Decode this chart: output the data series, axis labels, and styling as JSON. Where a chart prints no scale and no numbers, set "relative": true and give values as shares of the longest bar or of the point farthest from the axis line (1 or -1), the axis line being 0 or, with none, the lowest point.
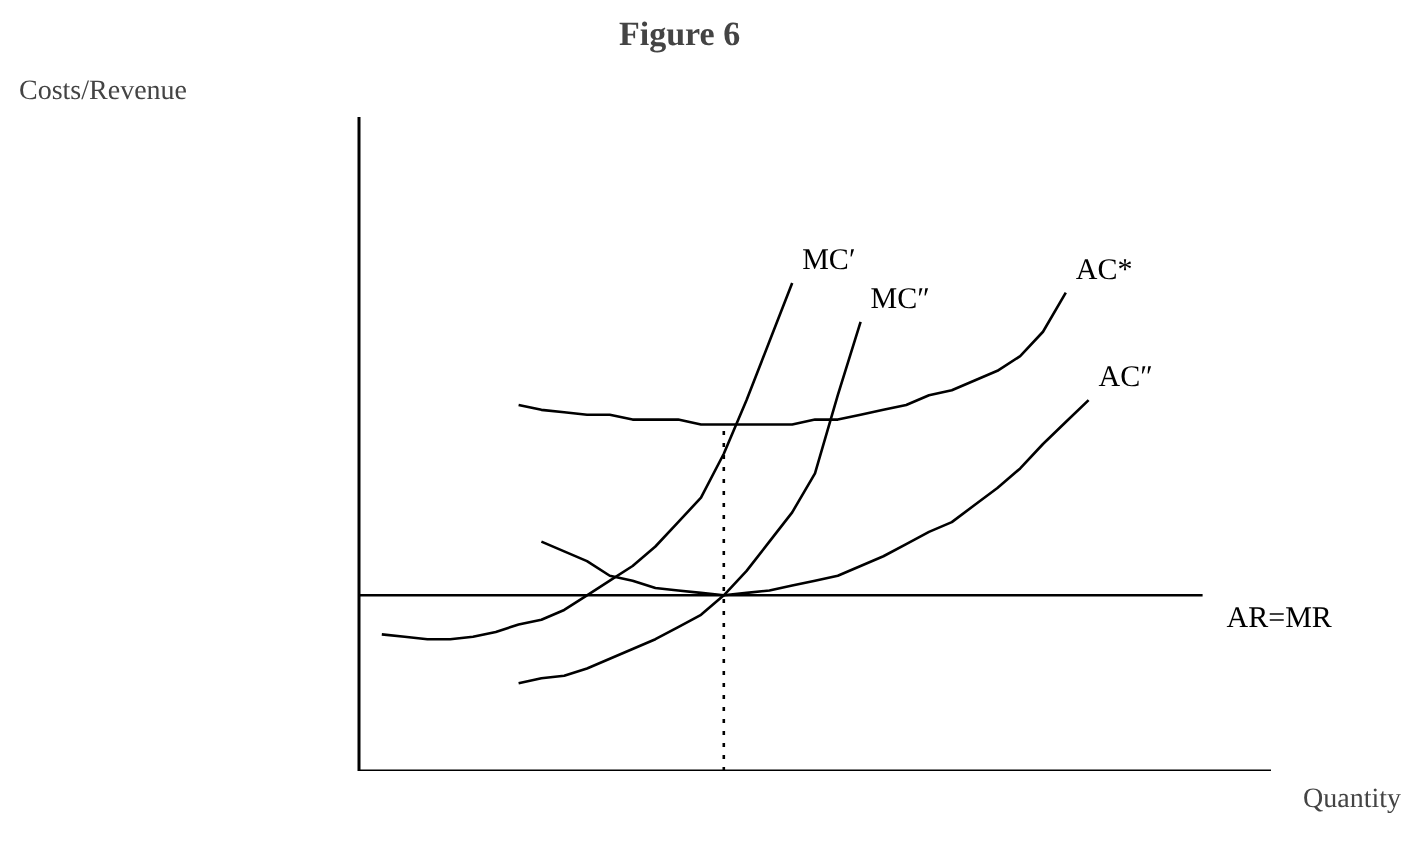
{
  "chart_data": {
    "type": "line",
    "title": "Figure 6",
    "xlabel": "Quantity",
    "annotations": [
      "Costs/Revenue"
    ],
    "relative": true,
    "tick_labels": false,
    "categories": [
      null,
      null,
      null,
      null,
      null,
      null,
      null,
      null,
      null,
      null,
      null,
      null,
      null,
      null,
      null,
      null,
      null,
      null,
      null,
      null,
      null,
      null,
      null,
      null,
      null,
      null,
      null,
      null,
      null,
      null,
      null,
      null,
      null,
      null,
      null,
      null,
      null,
      null,
      null,
      null,
      null
    ],
    "series": [
      {
        "name": "MC′",
        "color": "#000000",
        "values": [
          null,
          0.28,
          0.275,
          0.27,
          0.27,
          0.275,
          0.285,
          0.3,
          0.31,
          0.33,
          0.36,
          0.39,
          0.42,
          0.46,
          0.51,
          0.56,
          0.65,
          0.76,
          0.88,
          1.0,
          null,
          null,
          null,
          null,
          null,
          null,
          null,
          null,
          null,
          null,
          null,
          null,
          null,
          null,
          null,
          null,
          null,
          null,
          null,
          null,
          null
        ]
      },
      {
        "name": "MC″",
        "color": "#000000",
        "values": [
          null,
          null,
          null,
          null,
          null,
          null,
          null,
          0.18,
          0.19,
          0.195,
          0.21,
          0.23,
          0.25,
          0.27,
          0.295,
          0.32,
          0.36,
          0.41,
          0.47,
          0.53,
          0.61,
          0.77,
          0.92,
          null,
          null,
          null,
          null,
          null,
          null,
          null,
          null,
          null,
          null,
          null,
          null,
          null,
          null,
          null,
          null,
          null,
          null
        ]
      },
      {
        "name": "AC*",
        "color": "#000000",
        "values": [
          null,
          null,
          null,
          null,
          null,
          null,
          null,
          0.75,
          0.74,
          0.735,
          0.73,
          0.73,
          0.72,
          0.72,
          0.72,
          0.71,
          0.71,
          0.71,
          0.71,
          0.71,
          0.72,
          0.72,
          0.73,
          0.74,
          0.75,
          0.77,
          0.78,
          0.8,
          0.82,
          0.85,
          0.9,
          0.98,
          null,
          null,
          null,
          null,
          null,
          null,
          null,
          null,
          null
        ]
      },
      {
        "name": "AC″",
        "color": "#000000",
        "values": [
          null,
          null,
          null,
          null,
          null,
          null,
          null,
          null,
          0.47,
          0.45,
          0.43,
          0.4,
          0.39,
          0.375,
          0.37,
          0.365,
          0.36,
          0.365,
          0.37,
          0.38,
          0.39,
          0.4,
          0.42,
          0.44,
          0.465,
          0.49,
          0.51,
          0.545,
          0.58,
          0.62,
          0.67,
          0.715,
          0.76,
          null,
          null,
          null,
          null,
          null,
          null,
          null,
          null
        ]
      },
      {
        "name": "AR=MR",
        "color": "#000000",
        "values": [
          0.36,
          0.36,
          0.36,
          0.36,
          0.36,
          0.36,
          0.36,
          0.36,
          0.36,
          0.36,
          0.36,
          0.36,
          0.36,
          0.36,
          0.36,
          0.36,
          0.36,
          0.36,
          0.36,
          0.36,
          0.36,
          0.36,
          0.36,
          0.36,
          0.36,
          0.36,
          0.36,
          0.36,
          0.36,
          0.36,
          0.36,
          0.36,
          0.36,
          0.36,
          0.36,
          0.36,
          0.36,
          0.36,
          null,
          null,
          null
        ]
      }
    ]
  }
}
